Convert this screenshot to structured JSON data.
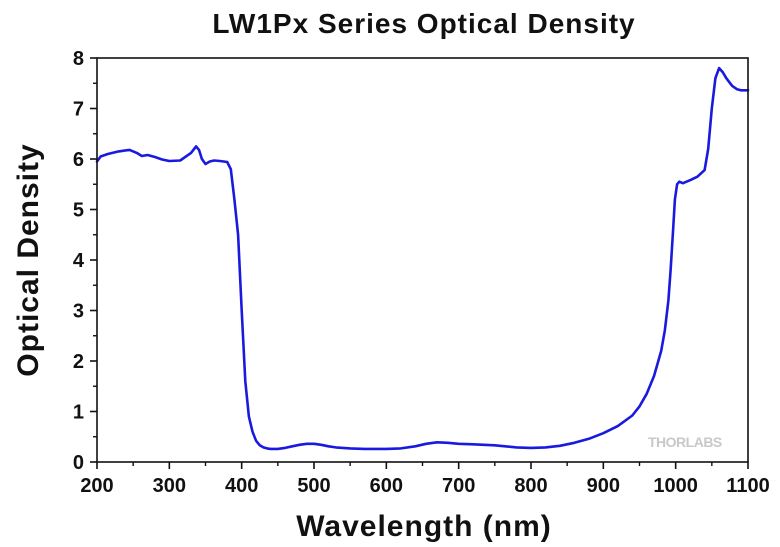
{
  "chart_data": {
    "type": "line",
    "title": "LW1Px Series Optical Density",
    "xlabel": "Wavelength (nm)",
    "ylabel": "Optical Density",
    "xlim": [
      200,
      1100
    ],
    "ylim": [
      0,
      8
    ],
    "xticks": [
      200,
      300,
      400,
      500,
      600,
      700,
      800,
      900,
      1000,
      1100
    ],
    "yticks": [
      0,
      1,
      2,
      3,
      4,
      5,
      6,
      7,
      8
    ],
    "grid": false,
    "watermark": "THORLABS",
    "series": [
      {
        "name": "LW1Px",
        "color": "#1a1adf",
        "x": [
          200,
          205,
          215,
          230,
          245,
          255,
          262,
          270,
          280,
          290,
          300,
          315,
          330,
          337,
          341,
          345,
          350,
          356,
          362,
          370,
          380,
          385,
          390,
          395,
          400,
          405,
          410,
          415,
          420,
          425,
          430,
          435,
          440,
          450,
          460,
          470,
          480,
          490,
          500,
          510,
          520,
          530,
          550,
          570,
          600,
          620,
          640,
          655,
          670,
          685,
          700,
          720,
          750,
          780,
          800,
          820,
          840,
          860,
          880,
          900,
          920,
          940,
          950,
          960,
          970,
          980,
          985,
          990,
          993,
          996,
          999,
          1002,
          1005,
          1010,
          1020,
          1030,
          1040,
          1045,
          1050,
          1055,
          1060,
          1065,
          1070,
          1078,
          1085,
          1090,
          1100
        ],
        "y": [
          5.95,
          6.05,
          6.1,
          6.15,
          6.18,
          6.12,
          6.06,
          6.08,
          6.04,
          5.99,
          5.96,
          5.97,
          6.12,
          6.25,
          6.18,
          6.0,
          5.9,
          5.95,
          5.97,
          5.96,
          5.94,
          5.8,
          5.2,
          4.5,
          3.0,
          1.6,
          0.9,
          0.6,
          0.42,
          0.33,
          0.29,
          0.27,
          0.26,
          0.26,
          0.28,
          0.31,
          0.34,
          0.36,
          0.36,
          0.34,
          0.31,
          0.29,
          0.27,
          0.26,
          0.26,
          0.27,
          0.31,
          0.36,
          0.39,
          0.38,
          0.36,
          0.35,
          0.33,
          0.29,
          0.28,
          0.29,
          0.32,
          0.38,
          0.46,
          0.57,
          0.71,
          0.92,
          1.1,
          1.35,
          1.7,
          2.2,
          2.6,
          3.2,
          3.8,
          4.5,
          5.2,
          5.5,
          5.55,
          5.52,
          5.58,
          5.65,
          5.78,
          6.2,
          7.0,
          7.6,
          7.8,
          7.72,
          7.6,
          7.45,
          7.38,
          7.36,
          7.36
        ]
      }
    ]
  }
}
